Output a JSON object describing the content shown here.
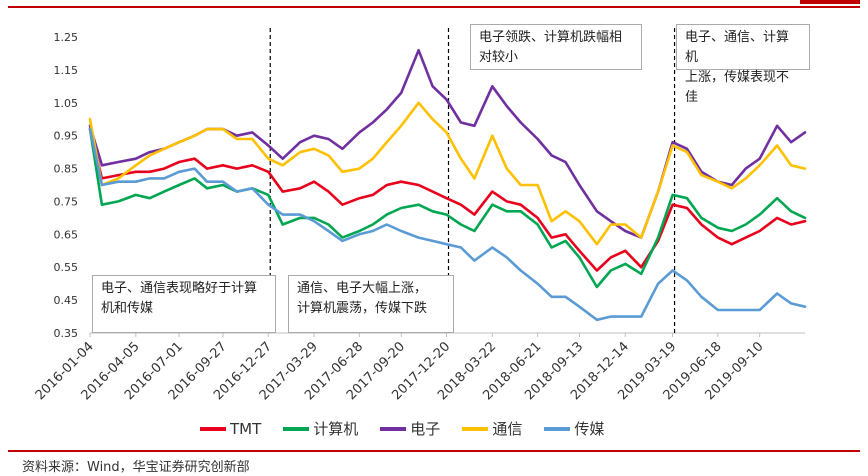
{
  "chart_data": {
    "type": "line",
    "title": "",
    "xlabel": "",
    "ylabel": "",
    "ylim": [
      0.35,
      1.25
    ],
    "y_ticks": [
      "1.25",
      "1.15",
      "1.05",
      "0.95",
      "0.85",
      "0.75",
      "0.65",
      "0.55",
      "0.45",
      "0.35"
    ],
    "x_tick_labels": [
      "2016-01-04",
      "2016-04-05",
      "2016-07-01",
      "2016-09-27",
      "2016-12-27",
      "2017-03-29",
      "2017-06-28",
      "2017-09-20",
      "2017-12-20",
      "2018-03-22",
      "2018-06-21",
      "2018-09-13",
      "2018-12-14",
      "2019-03-19",
      "2019-06-18",
      "2019-09-10"
    ],
    "x": [
      "2016-01-04",
      "2016-01-28",
      "2016-03-01",
      "2016-04-05",
      "2016-05-03",
      "2016-06-01",
      "2016-07-01",
      "2016-08-01",
      "2016-08-26",
      "2016-09-27",
      "2016-10-25",
      "2016-11-25",
      "2016-12-27",
      "2017-01-25",
      "2017-03-01",
      "2017-03-29",
      "2017-04-27",
      "2017-05-25",
      "2017-06-28",
      "2017-07-25",
      "2017-08-22",
      "2017-09-20",
      "2017-10-25",
      "2017-11-22",
      "2017-12-20",
      "2018-01-18",
      "2018-02-14",
      "2018-03-22",
      "2018-04-20",
      "2018-05-18",
      "2018-06-21",
      "2018-07-19",
      "2018-08-16",
      "2018-09-13",
      "2018-10-18",
      "2018-11-15",
      "2018-12-14",
      "2019-01-15",
      "2019-02-18",
      "2019-03-19",
      "2019-04-17",
      "2019-05-16",
      "2019-06-18",
      "2019-07-16",
      "2019-08-13",
      "2019-09-10",
      "2019-10-15",
      "2019-11-12",
      "2019-12-10"
    ],
    "series": [
      {
        "name": "TMT",
        "color": "#e8001c",
        "values": [
          0.97,
          0.82,
          0.83,
          0.84,
          0.84,
          0.85,
          0.87,
          0.88,
          0.85,
          0.86,
          0.85,
          0.86,
          0.84,
          0.78,
          0.79,
          0.81,
          0.78,
          0.74,
          0.76,
          0.77,
          0.8,
          0.81,
          0.8,
          0.78,
          0.76,
          0.74,
          0.71,
          0.78,
          0.75,
          0.74,
          0.7,
          0.64,
          0.65,
          0.6,
          0.54,
          0.58,
          0.6,
          0.55,
          0.63,
          0.74,
          0.73,
          0.68,
          0.64,
          0.62,
          0.64,
          0.66,
          0.7,
          0.68,
          0.69
        ]
      },
      {
        "name": "计算机",
        "color": "#00a651",
        "values": [
          0.97,
          0.74,
          0.75,
          0.77,
          0.76,
          0.78,
          0.8,
          0.82,
          0.79,
          0.8,
          0.78,
          0.79,
          0.77,
          0.68,
          0.7,
          0.7,
          0.68,
          0.64,
          0.66,
          0.68,
          0.71,
          0.73,
          0.74,
          0.72,
          0.71,
          0.68,
          0.66,
          0.74,
          0.72,
          0.72,
          0.68,
          0.61,
          0.63,
          0.58,
          0.49,
          0.54,
          0.56,
          0.53,
          0.64,
          0.77,
          0.76,
          0.7,
          0.67,
          0.66,
          0.68,
          0.71,
          0.76,
          0.72,
          0.7
        ]
      },
      {
        "name": "电子",
        "color": "#7030a0",
        "values": [
          0.98,
          0.86,
          0.87,
          0.88,
          0.9,
          0.91,
          0.93,
          0.95,
          0.97,
          0.97,
          0.95,
          0.96,
          0.92,
          0.88,
          0.93,
          0.95,
          0.94,
          0.91,
          0.96,
          0.99,
          1.03,
          1.08,
          1.21,
          1.1,
          1.06,
          0.99,
          0.98,
          1.1,
          1.04,
          0.99,
          0.94,
          0.89,
          0.87,
          0.8,
          0.72,
          0.69,
          0.66,
          0.64,
          0.78,
          0.93,
          0.91,
          0.84,
          0.81,
          0.8,
          0.85,
          0.88,
          0.98,
          0.93,
          0.96
        ]
      },
      {
        "name": "通信",
        "color": "#ffc000",
        "values": [
          1.0,
          0.8,
          0.82,
          0.86,
          0.89,
          0.91,
          0.93,
          0.95,
          0.97,
          0.97,
          0.94,
          0.94,
          0.88,
          0.86,
          0.9,
          0.91,
          0.89,
          0.84,
          0.85,
          0.88,
          0.93,
          0.98,
          1.05,
          1.0,
          0.96,
          0.88,
          0.82,
          0.95,
          0.85,
          0.8,
          0.8,
          0.69,
          0.72,
          0.69,
          0.62,
          0.68,
          0.68,
          0.64,
          0.78,
          0.92,
          0.9,
          0.83,
          0.81,
          0.79,
          0.82,
          0.86,
          0.92,
          0.86,
          0.85
        ]
      },
      {
        "name": "传媒",
        "color": "#5b9bd5",
        "values": [
          0.97,
          0.8,
          0.81,
          0.81,
          0.82,
          0.82,
          0.84,
          0.85,
          0.81,
          0.81,
          0.78,
          0.79,
          0.74,
          0.71,
          0.71,
          0.69,
          0.66,
          0.63,
          0.65,
          0.66,
          0.68,
          0.66,
          0.64,
          0.63,
          0.62,
          0.61,
          0.57,
          0.61,
          0.58,
          0.54,
          0.5,
          0.46,
          0.46,
          0.43,
          0.39,
          0.4,
          0.4,
          0.4,
          0.5,
          0.54,
          0.51,
          0.46,
          0.42,
          0.42,
          0.42,
          0.42,
          0.47,
          0.44,
          0.43
        ]
      }
    ],
    "dividers_at_x_tick": [
      "2016-12-27",
      "2017-12-20",
      "2019-03-19"
    ],
    "annotations": [
      {
        "text_lines": [
          "电子、通信表现略好于计算",
          "机和传媒"
        ]
      },
      {
        "text_lines": [
          "通信、电子大幅上涨，",
          "计算机震荡，传媒下跌"
        ]
      },
      {
        "text_lines": [
          "电子领跌、计算机跌幅相",
          "对较小"
        ]
      },
      {
        "text_lines": [
          "电子、通信、计算机",
          "上涨，传媒表现不佳"
        ]
      }
    ],
    "grid": false,
    "legend_position": "bottom"
  },
  "source": "资料来源：Wind，华宝证券研究创新部",
  "colors": {
    "rule": "#c00000"
  }
}
